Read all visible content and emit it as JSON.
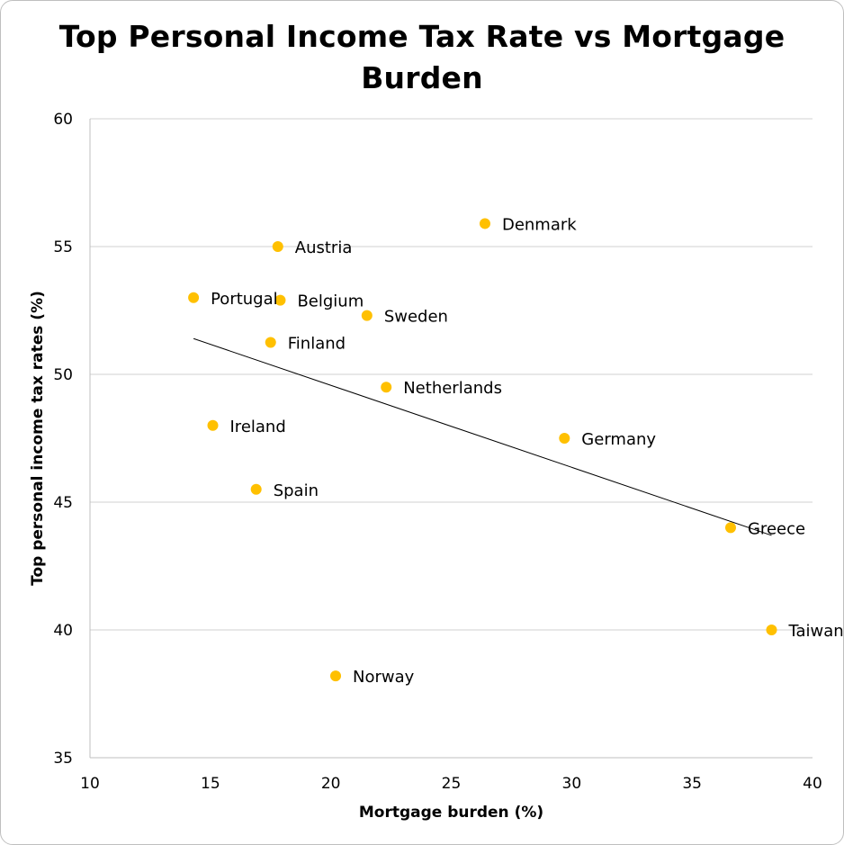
{
  "chart_data": {
    "type": "scatter",
    "title_lines": [
      "Top Personal Income Tax Rate vs Mortgage",
      "Burden"
    ],
    "xlabel": "Mortgage burden (%)",
    "ylabel": "Top personal income tax rates (%)",
    "xlim": [
      10,
      40
    ],
    "ylim": [
      35,
      60
    ],
    "xticks": [
      "10",
      "15",
      "20",
      "25",
      "30",
      "35",
      "40"
    ],
    "yticks": [
      "35",
      "40",
      "45",
      "50",
      "55",
      "60"
    ],
    "grid": "horizontal",
    "marker_color": "#FFC000",
    "trendline": {
      "x": [
        14.3,
        38.3
      ],
      "y": [
        51.4,
        43.7
      ]
    },
    "points": [
      {
        "label": "Denmark",
        "x": 26.4,
        "y": 55.9
      },
      {
        "label": "Austria",
        "x": 17.8,
        "y": 55.0
      },
      {
        "label": "Portugal",
        "x": 14.3,
        "y": 53.0
      },
      {
        "label": "Belgium",
        "x": 17.9,
        "y": 52.9
      },
      {
        "label": "Sweden",
        "x": 21.5,
        "y": 52.3
      },
      {
        "label": "Finland",
        "x": 17.5,
        "y": 51.25
      },
      {
        "label": "Netherlands",
        "x": 22.3,
        "y": 49.5
      },
      {
        "label": "Ireland",
        "x": 15.1,
        "y": 48.0
      },
      {
        "label": "Germany",
        "x": 29.7,
        "y": 47.5
      },
      {
        "label": "Spain",
        "x": 16.9,
        "y": 45.5
      },
      {
        "label": "Greece",
        "x": 36.6,
        "y": 44.0
      },
      {
        "label": "Taiwan",
        "x": 38.3,
        "y": 40.0
      },
      {
        "label": "Norway",
        "x": 20.2,
        "y": 38.2
      }
    ]
  }
}
